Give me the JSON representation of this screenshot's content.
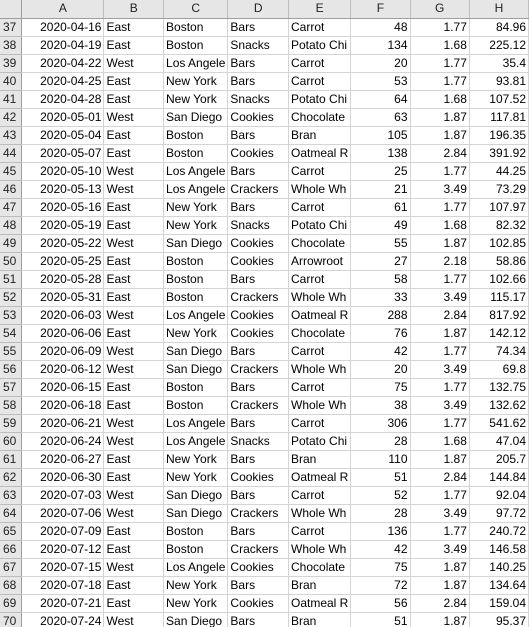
{
  "columns": [
    "A",
    "B",
    "C",
    "D",
    "E",
    "F",
    "G",
    "H"
  ],
  "rows": [
    {
      "n": "37",
      "c": [
        "2020-04-16",
        "East",
        "Boston",
        "Bars",
        "Carrot",
        "48",
        "1.77",
        "84.96"
      ]
    },
    {
      "n": "38",
      "c": [
        "2020-04-19",
        "East",
        "Boston",
        "Snacks",
        "Potato Chi",
        "134",
        "1.68",
        "225.12"
      ]
    },
    {
      "n": "39",
      "c": [
        "2020-04-22",
        "West",
        "Los Angele",
        "Bars",
        "Carrot",
        "20",
        "1.77",
        "35.4"
      ]
    },
    {
      "n": "40",
      "c": [
        "2020-04-25",
        "East",
        "New York",
        "Bars",
        "Carrot",
        "53",
        "1.77",
        "93.81"
      ]
    },
    {
      "n": "41",
      "c": [
        "2020-04-28",
        "East",
        "New York",
        "Snacks",
        "Potato Chi",
        "64",
        "1.68",
        "107.52"
      ]
    },
    {
      "n": "42",
      "c": [
        "2020-05-01",
        "West",
        "San Diego",
        "Cookies",
        "Chocolate",
        "63",
        "1.87",
        "117.81"
      ]
    },
    {
      "n": "43",
      "c": [
        "2020-05-04",
        "East",
        "Boston",
        "Bars",
        "Bran",
        "105",
        "1.87",
        "196.35"
      ]
    },
    {
      "n": "44",
      "c": [
        "2020-05-07",
        "East",
        "Boston",
        "Cookies",
        "Oatmeal R",
        "138",
        "2.84",
        "391.92"
      ]
    },
    {
      "n": "45",
      "c": [
        "2020-05-10",
        "West",
        "Los Angele",
        "Bars",
        "Carrot",
        "25",
        "1.77",
        "44.25"
      ]
    },
    {
      "n": "46",
      "c": [
        "2020-05-13",
        "West",
        "Los Angele",
        "Crackers",
        "Whole Wh",
        "21",
        "3.49",
        "73.29"
      ]
    },
    {
      "n": "47",
      "c": [
        "2020-05-16",
        "East",
        "New York",
        "Bars",
        "Carrot",
        "61",
        "1.77",
        "107.97"
      ]
    },
    {
      "n": "48",
      "c": [
        "2020-05-19",
        "East",
        "New York",
        "Snacks",
        "Potato Chi",
        "49",
        "1.68",
        "82.32"
      ]
    },
    {
      "n": "49",
      "c": [
        "2020-05-22",
        "West",
        "San Diego",
        "Cookies",
        "Chocolate",
        "55",
        "1.87",
        "102.85"
      ]
    },
    {
      "n": "50",
      "c": [
        "2020-05-25",
        "East",
        "Boston",
        "Cookies",
        "Arrowroot",
        "27",
        "2.18",
        "58.86"
      ]
    },
    {
      "n": "51",
      "c": [
        "2020-05-28",
        "East",
        "Boston",
        "Bars",
        "Carrot",
        "58",
        "1.77",
        "102.66"
      ]
    },
    {
      "n": "52",
      "c": [
        "2020-05-31",
        "East",
        "Boston",
        "Crackers",
        "Whole Wh",
        "33",
        "3.49",
        "115.17"
      ]
    },
    {
      "n": "53",
      "c": [
        "2020-06-03",
        "West",
        "Los Angele",
        "Cookies",
        "Oatmeal R",
        "288",
        "2.84",
        "817.92"
      ]
    },
    {
      "n": "54",
      "c": [
        "2020-06-06",
        "East",
        "New York",
        "Cookies",
        "Chocolate",
        "76",
        "1.87",
        "142.12"
      ]
    },
    {
      "n": "55",
      "c": [
        "2020-06-09",
        "West",
        "San Diego",
        "Bars",
        "Carrot",
        "42",
        "1.77",
        "74.34"
      ]
    },
    {
      "n": "56",
      "c": [
        "2020-06-12",
        "West",
        "San Diego",
        "Crackers",
        "Whole Wh",
        "20",
        "3.49",
        "69.8"
      ]
    },
    {
      "n": "57",
      "c": [
        "2020-06-15",
        "East",
        "Boston",
        "Bars",
        "Carrot",
        "75",
        "1.77",
        "132.75"
      ]
    },
    {
      "n": "58",
      "c": [
        "2020-06-18",
        "East",
        "Boston",
        "Crackers",
        "Whole Wh",
        "38",
        "3.49",
        "132.62"
      ]
    },
    {
      "n": "59",
      "c": [
        "2020-06-21",
        "West",
        "Los Angele",
        "Bars",
        "Carrot",
        "306",
        "1.77",
        "541.62"
      ]
    },
    {
      "n": "60",
      "c": [
        "2020-06-24",
        "West",
        "Los Angele",
        "Snacks",
        "Potato Chi",
        "28",
        "1.68",
        "47.04"
      ]
    },
    {
      "n": "61",
      "c": [
        "2020-06-27",
        "East",
        "New York",
        "Bars",
        "Bran",
        "110",
        "1.87",
        "205.7"
      ]
    },
    {
      "n": "62",
      "c": [
        "2020-06-30",
        "East",
        "New York",
        "Cookies",
        "Oatmeal R",
        "51",
        "2.84",
        "144.84"
      ]
    },
    {
      "n": "63",
      "c": [
        "2020-07-03",
        "West",
        "San Diego",
        "Bars",
        "Carrot",
        "52",
        "1.77",
        "92.04"
      ]
    },
    {
      "n": "64",
      "c": [
        "2020-07-06",
        "West",
        "San Diego",
        "Crackers",
        "Whole Wh",
        "28",
        "3.49",
        "97.72"
      ]
    },
    {
      "n": "65",
      "c": [
        "2020-07-09",
        "East",
        "Boston",
        "Bars",
        "Carrot",
        "136",
        "1.77",
        "240.72"
      ]
    },
    {
      "n": "66",
      "c": [
        "2020-07-12",
        "East",
        "Boston",
        "Crackers",
        "Whole Wh",
        "42",
        "3.49",
        "146.58"
      ]
    },
    {
      "n": "67",
      "c": [
        "2020-07-15",
        "West",
        "Los Angele",
        "Cookies",
        "Chocolate",
        "75",
        "1.87",
        "140.25"
      ]
    },
    {
      "n": "68",
      "c": [
        "2020-07-18",
        "East",
        "New York",
        "Bars",
        "Bran",
        "72",
        "1.87",
        "134.64"
      ]
    },
    {
      "n": "69",
      "c": [
        "2020-07-21",
        "East",
        "New York",
        "Cookies",
        "Oatmeal R",
        "56",
        "2.84",
        "159.04"
      ]
    },
    {
      "n": "70",
      "c": [
        "2020-07-24",
        "West",
        "San Diego",
        "Bars",
        "Bran",
        "51",
        "1.87",
        "95.37"
      ]
    }
  ]
}
